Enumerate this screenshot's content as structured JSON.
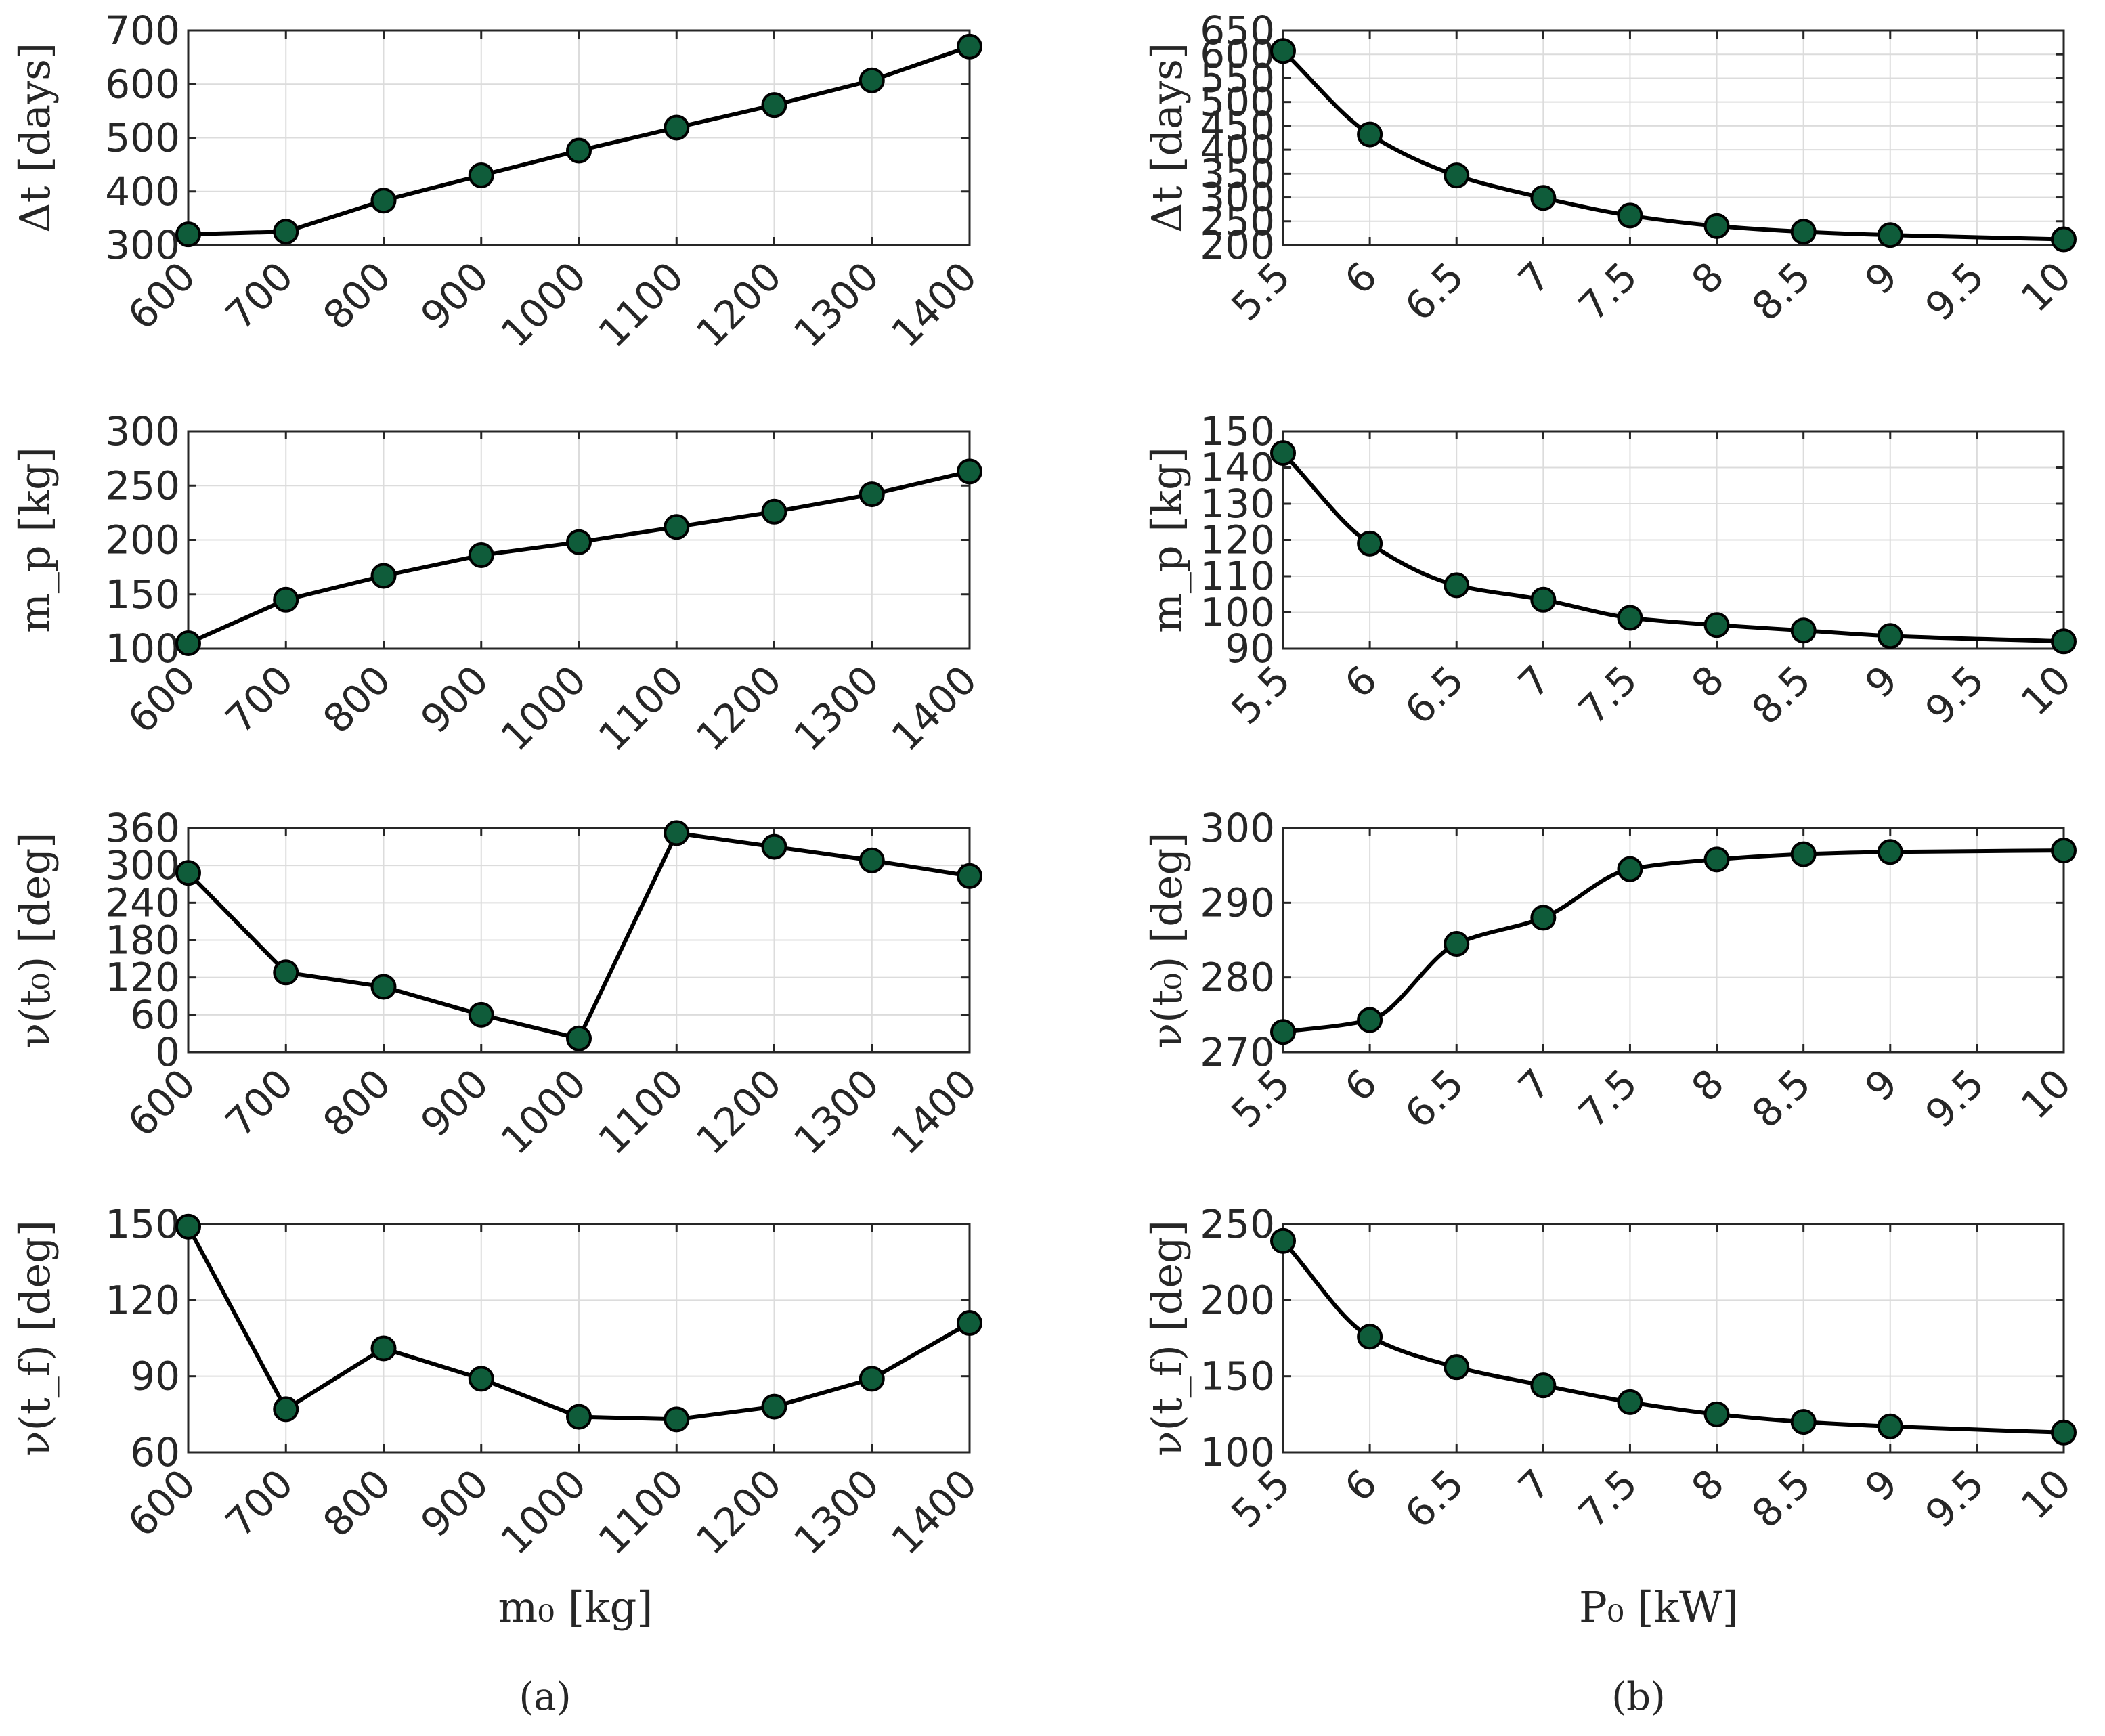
{
  "figure": {
    "panel_labels": [
      "(a)",
      "(b)"
    ],
    "xlabels": [
      "m₀ [kg]",
      "P₀ [kW]"
    ]
  },
  "colors": {
    "marker_fill": "#0f5c3a",
    "line": "#000000",
    "grid": "#dcdcdc",
    "axes": "#262626"
  },
  "chart_data": [
    {
      "id": "a1",
      "type": "line",
      "column": "a",
      "row": 1,
      "xlabel": "",
      "ylabel": "Δt [days]",
      "x": [
        600,
        700,
        800,
        900,
        1000,
        1100,
        1200,
        1300,
        1400
      ],
      "y": [
        320,
        325,
        383,
        430,
        476,
        519,
        561,
        607,
        670
      ],
      "xlim": [
        600,
        1400
      ],
      "ylim": [
        300,
        700
      ],
      "xticks": [
        600,
        700,
        800,
        900,
        1000,
        1100,
        1200,
        1300,
        1400
      ],
      "yticks": [
        300,
        400,
        500,
        600,
        700
      ],
      "smooth": false
    },
    {
      "id": "a2",
      "type": "line",
      "column": "a",
      "row": 2,
      "xlabel": "",
      "ylabel": "m_p [kg]",
      "x": [
        600,
        700,
        800,
        900,
        1000,
        1100,
        1200,
        1300,
        1400
      ],
      "y": [
        105,
        145,
        167,
        186,
        198,
        212,
        226,
        242,
        263
      ],
      "xlim": [
        600,
        1400
      ],
      "ylim": [
        100,
        300
      ],
      "xticks": [
        600,
        700,
        800,
        900,
        1000,
        1100,
        1200,
        1300,
        1400
      ],
      "yticks": [
        100,
        150,
        200,
        250,
        300
      ],
      "smooth": false
    },
    {
      "id": "a3",
      "type": "line",
      "column": "a",
      "row": 3,
      "xlabel": "",
      "ylabel": "ν(t₀) [deg]",
      "x": [
        600,
        700,
        800,
        900,
        1000,
        1100,
        1200,
        1300,
        1400
      ],
      "y": [
        288,
        128,
        105,
        60,
        22,
        352,
        330,
        308,
        283
      ],
      "xlim": [
        600,
        1400
      ],
      "ylim": [
        0,
        360
      ],
      "xticks": [
        600,
        700,
        800,
        900,
        1000,
        1100,
        1200,
        1300,
        1400
      ],
      "yticks": [
        0,
        60,
        120,
        180,
        240,
        300,
        360
      ],
      "smooth": false
    },
    {
      "id": "a4",
      "type": "line",
      "column": "a",
      "row": 4,
      "xlabel": "m₀ [kg]",
      "ylabel": "ν(t_f) [deg]",
      "x": [
        600,
        700,
        800,
        900,
        1000,
        1100,
        1200,
        1300,
        1400
      ],
      "y": [
        149,
        77,
        101,
        89,
        74,
        73,
        78,
        89,
        111
      ],
      "xlim": [
        600,
        1400
      ],
      "ylim": [
        60,
        150
      ],
      "xticks": [
        600,
        700,
        800,
        900,
        1000,
        1100,
        1200,
        1300,
        1400
      ],
      "yticks": [
        60,
        90,
        120,
        150
      ],
      "smooth": false
    },
    {
      "id": "b1",
      "type": "line",
      "column": "b",
      "row": 1,
      "xlabel": "",
      "ylabel": "Δt [days]",
      "x": [
        5.5,
        6,
        6.5,
        7,
        7.5,
        8,
        8.5,
        9,
        10
      ],
      "y": [
        607,
        432,
        346,
        299,
        262,
        240,
        228,
        221,
        212
      ],
      "xlim": [
        5.5,
        10
      ],
      "ylim": [
        200,
        650
      ],
      "xticks": [
        5.5,
        6,
        6.5,
        7,
        7.5,
        8,
        8.5,
        9,
        9.5,
        10
      ],
      "yticks": [
        200,
        250,
        300,
        350,
        400,
        450,
        500,
        550,
        600,
        650
      ],
      "smooth": true
    },
    {
      "id": "b2",
      "type": "line",
      "column": "b",
      "row": 2,
      "xlabel": "",
      "ylabel": "m_p [kg]",
      "x": [
        5.5,
        6,
        6.5,
        7,
        7.5,
        8,
        8.5,
        9,
        10
      ],
      "y": [
        144,
        119,
        107.5,
        103.5,
        98.5,
        96.5,
        95,
        93.5,
        92
      ],
      "xlim": [
        5.5,
        10
      ],
      "ylim": [
        90,
        150
      ],
      "xticks": [
        5.5,
        6,
        6.5,
        7,
        7.5,
        8,
        8.5,
        9,
        9.5,
        10
      ],
      "yticks": [
        90,
        100,
        110,
        120,
        130,
        140,
        150
      ],
      "smooth": true
    },
    {
      "id": "b3",
      "type": "line",
      "column": "b",
      "row": 3,
      "xlabel": "",
      "ylabel": "ν(t₀) [deg]",
      "x": [
        5.5,
        6,
        6.5,
        7,
        7.5,
        8,
        8.5,
        9,
        10
      ],
      "y": [
        272.7,
        274.3,
        284.5,
        288,
        294.5,
        295.8,
        296.5,
        296.8,
        297
      ],
      "xlim": [
        5.5,
        10
      ],
      "ylim": [
        270,
        300
      ],
      "xticks": [
        5.5,
        6,
        6.5,
        7,
        7.5,
        8,
        8.5,
        9,
        9.5,
        10
      ],
      "yticks": [
        270,
        280,
        290,
        300
      ],
      "smooth": true
    },
    {
      "id": "b4",
      "type": "line",
      "column": "b",
      "row": 4,
      "xlabel": "P₀ [kW]",
      "ylabel": "ν(t_f) [deg]",
      "x": [
        5.5,
        6,
        6.5,
        7,
        7.5,
        8,
        8.5,
        9,
        10
      ],
      "y": [
        239,
        176,
        156,
        144,
        133,
        125,
        120,
        117,
        113
      ],
      "xlim": [
        5.5,
        10
      ],
      "ylim": [
        100,
        250
      ],
      "xticks": [
        5.5,
        6,
        6.5,
        7,
        7.5,
        8,
        8.5,
        9,
        9.5,
        10
      ],
      "yticks": [
        100,
        150,
        200,
        250
      ],
      "smooth": true
    }
  ]
}
